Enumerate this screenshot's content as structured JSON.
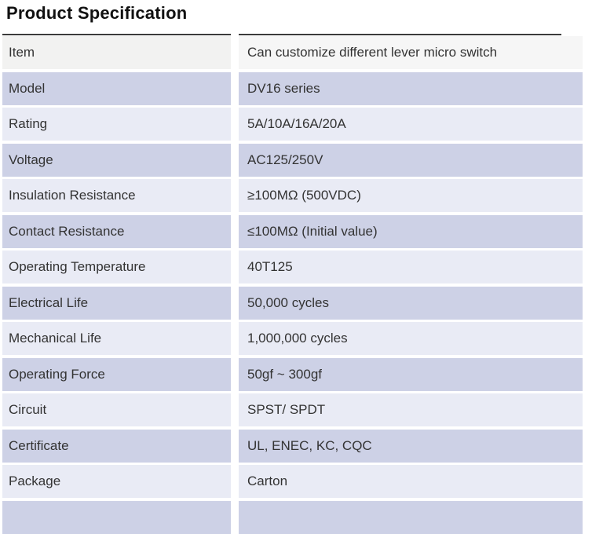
{
  "page": {
    "title": "Product Specification"
  },
  "table": {
    "rows": [
      {
        "label": "Item",
        "value": "Can customize different lever micro switch"
      },
      {
        "label": "Model",
        "value": "DV16 series"
      },
      {
        "label": "Rating",
        "value": "5A/10A/16A/20A"
      },
      {
        "label": "Voltage",
        "value": "AC125/250V"
      },
      {
        "label": "Insulation Resistance",
        "value": "≥100MΩ (500VDC)"
      },
      {
        "label": "Contact Resistance",
        "value": "≤100MΩ (Initial value)"
      },
      {
        "label": "Operating Temperature",
        "value": "40T125"
      },
      {
        "label": "Electrical Life",
        "value": "50,000 cycles"
      },
      {
        "label": "Mechanical Life",
        "value": "1,000,000 cycles"
      },
      {
        "label": "Operating Force",
        "value": "50gf ~ 300gf"
      },
      {
        "label": "Circuit",
        "value": "SPST/ SPDT"
      },
      {
        "label": "Certificate",
        "value": "UL, ENEC, KC, CQC"
      },
      {
        "label": "Package",
        "value": "Carton"
      }
    ]
  },
  "colors": {
    "row_medium_lavender": "#cdd1e6",
    "row_light_lavender": "#e9ebf5",
    "first_row_left": "#f2f2f1",
    "first_row_right": "#f6f6f6",
    "top_border": "#3b3b3b",
    "text": "#333333",
    "title": "#111111"
  }
}
